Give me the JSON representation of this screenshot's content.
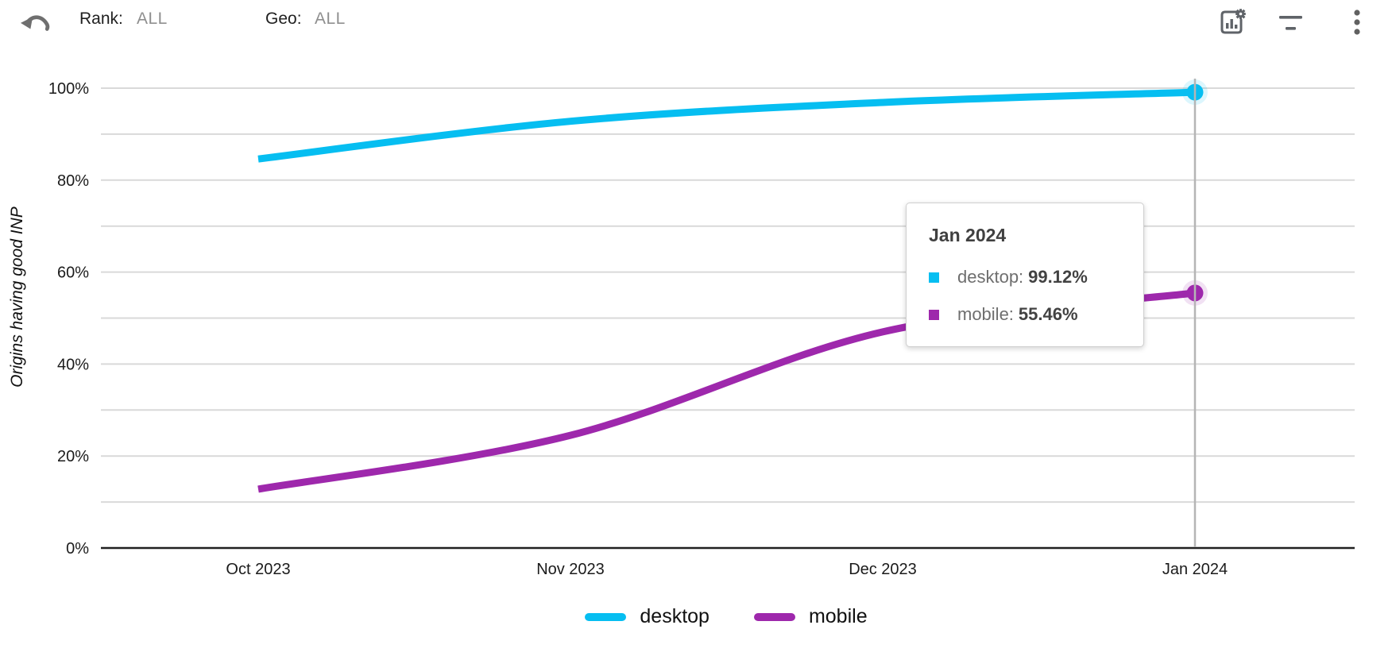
{
  "topbar": {
    "rank_label": "Rank:",
    "rank_value": "ALL",
    "geo_label": "Geo:",
    "geo_value": "ALL",
    "icons": {
      "undo": "undo-arrow",
      "chart_settings": "bar-chart-with-gear",
      "filter": "filter-lines",
      "more": "vertical-three-dots"
    }
  },
  "chart_data": {
    "type": "line",
    "title": "",
    "ylabel": "Origins having good INP",
    "xlabel": "",
    "x": [
      "Oct 2023",
      "Nov 2023",
      "Dec 2023",
      "Jan 2024"
    ],
    "series": [
      {
        "name": "desktop",
        "color": "#06bef1",
        "values": [
          84.6,
          92.8,
          96.9,
          99.12
        ]
      },
      {
        "name": "mobile",
        "color": "#9e28ac",
        "values": [
          12.8,
          24.5,
          47.0,
          55.46
        ]
      }
    ],
    "ylim": [
      0,
      100
    ],
    "y_tick_labels": [
      "0%",
      "20%",
      "40%",
      "60%",
      "80%",
      "100%"
    ],
    "gridlines": "horizontal every 10%, labeled every 20%",
    "legend_position": "bottom",
    "highlighted_x": "Jan 2024",
    "end_point_markers": true
  },
  "tooltip": {
    "title": "Jan 2024",
    "rows": [
      {
        "label": "desktop:",
        "value": "99.12%"
      },
      {
        "label": "mobile:",
        "value": "55.46%"
      }
    ]
  }
}
